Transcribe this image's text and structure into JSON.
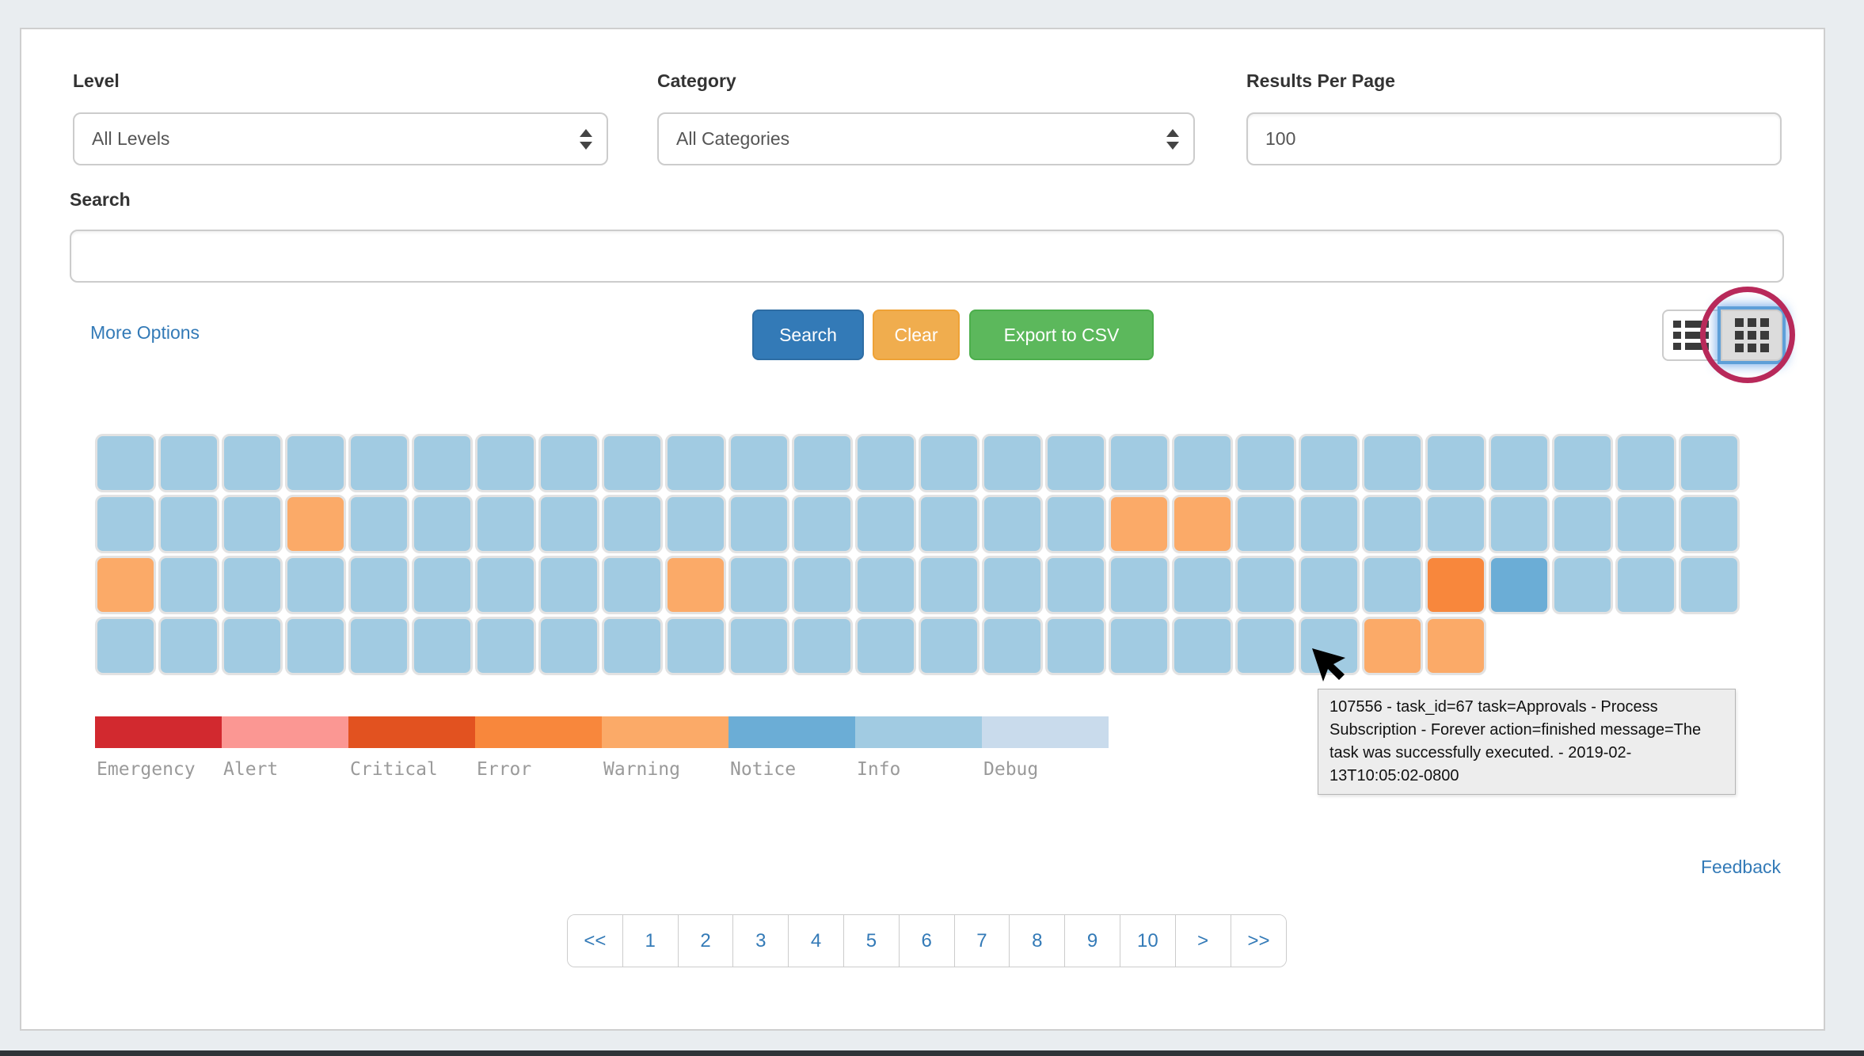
{
  "page": {
    "background": "#e9edf0",
    "bottom_bar_color": "#2f3438"
  },
  "filters": {
    "level": {
      "label": "Level",
      "value": "All Levels"
    },
    "category": {
      "label": "Category",
      "value": "All Categories"
    },
    "results_per_page": {
      "label": "Results Per Page",
      "value": "100"
    },
    "search": {
      "label": "Search",
      "value": ""
    }
  },
  "actions": {
    "more_options": "More Options",
    "search_button": {
      "label": "Search",
      "color": "#337ab7",
      "border": "#2e6da4"
    },
    "clear_button": {
      "label": "Clear",
      "color": "#f0ad4e",
      "border": "#eea236"
    },
    "export_button": {
      "label": "Export to CSV",
      "color": "#5cb85c",
      "border": "#4cae4c"
    }
  },
  "view_toggle": {
    "list_icon": "list-view-icon",
    "grid_icon": "grid-view-icon",
    "active": "grid",
    "annotation_color": "#b8295a"
  },
  "heatmap": {
    "palette": {
      "emergency": "#d2292f",
      "alert": "#fb9793",
      "critical": "#e25220",
      "error": "#f8873c",
      "warning": "#fbaa68",
      "notice": "#6badd6",
      "info": "#a1cbe2",
      "debug": "#c9dbec"
    },
    "rows": [
      [
        "info",
        "info",
        "info",
        "info",
        "info",
        "info",
        "info",
        "info",
        "info",
        "info",
        "info",
        "info",
        "info",
        "info",
        "info",
        "info",
        "info",
        "info",
        "info",
        "info",
        "info",
        "info",
        "info",
        "info",
        "info",
        "info"
      ],
      [
        "info",
        "info",
        "info",
        "warning",
        "info",
        "info",
        "info",
        "info",
        "info",
        "info",
        "info",
        "info",
        "info",
        "info",
        "info",
        "info",
        "warning",
        "warning",
        "info",
        "info",
        "info",
        "info",
        "info",
        "info",
        "info",
        "info"
      ],
      [
        "warning",
        "info",
        "info",
        "info",
        "info",
        "info",
        "info",
        "info",
        "info",
        "warning",
        "info",
        "info",
        "info",
        "info",
        "info",
        "info",
        "info",
        "info",
        "info",
        "info",
        "info",
        "error",
        "notice",
        "info",
        "info",
        "info"
      ],
      [
        "info",
        "info",
        "info",
        "info",
        "info",
        "info",
        "info",
        "info",
        "info",
        "info",
        "info",
        "info",
        "info",
        "info",
        "info",
        "info",
        "info",
        "info",
        "info",
        "info",
        "warning",
        "warning"
      ]
    ]
  },
  "legend": {
    "items": [
      {
        "label": "Emergency",
        "color": "#d2292f"
      },
      {
        "label": "Alert",
        "color": "#fb9793"
      },
      {
        "label": "Critical",
        "color": "#e25220"
      },
      {
        "label": "Error",
        "color": "#f8873c"
      },
      {
        "label": "Warning",
        "color": "#fbaa68"
      },
      {
        "label": "Notice",
        "color": "#6badd6"
      },
      {
        "label": "Info",
        "color": "#a1cbe2"
      },
      {
        "label": "Debug",
        "color": "#c9dbec"
      }
    ]
  },
  "tooltip": {
    "text": "107556 - task_id=67 task=Approvals - Process Subscription - Forever action=finished message=The task was successfully executed. - 2019-02-13T10:05:02-0800"
  },
  "pagination": {
    "items": [
      "<<",
      "1",
      "2",
      "3",
      "4",
      "5",
      "6",
      "7",
      "8",
      "9",
      "10",
      ">",
      ">>"
    ]
  },
  "footer": {
    "feedback": "Feedback"
  }
}
